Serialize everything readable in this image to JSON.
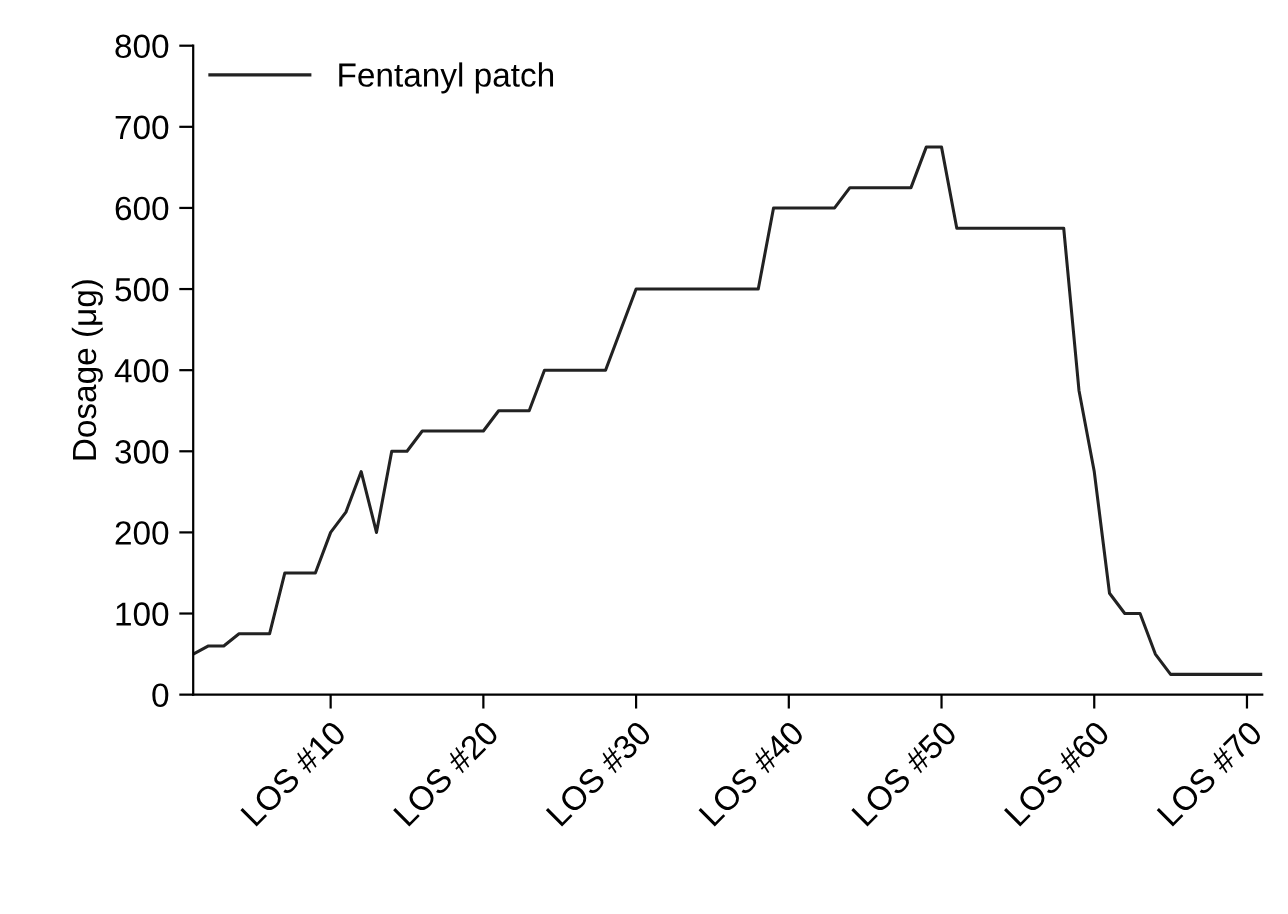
{
  "chart_data": {
    "type": "line",
    "ylabel": "Dosage (μg)",
    "xlim": [
      1,
      71
    ],
    "xticks": [
      {
        "value": 10,
        "label": "LOS #10"
      },
      {
        "value": 20,
        "label": "LOS #20"
      },
      {
        "value": 30,
        "label": "LOS #30"
      },
      {
        "value": 40,
        "label": "LOS #40"
      },
      {
        "value": 50,
        "label": "LOS #50"
      },
      {
        "value": 60,
        "label": "LOS #60"
      },
      {
        "value": 70,
        "label": "LOS #70"
      }
    ],
    "ylim": [
      0,
      800
    ],
    "yticks": [
      0,
      100,
      200,
      300,
      400,
      500,
      600,
      700,
      800
    ],
    "grid": false,
    "legend": "top left",
    "marker": "none",
    "line_style": "solid",
    "series": [
      {
        "name": "Fentanyl patch",
        "color": "#222222",
        "x": [
          1,
          2,
          3,
          4,
          6,
          7,
          9,
          10,
          11,
          12,
          13,
          14,
          15,
          16,
          20,
          21,
          23,
          24,
          28,
          30,
          38,
          39,
          43,
          44,
          48,
          49,
          50,
          51,
          58,
          59,
          60,
          61,
          62,
          63,
          64,
          65,
          71
        ],
        "values": [
          50,
          60,
          60,
          75,
          75,
          150,
          150,
          200,
          225,
          275,
          200,
          300,
          300,
          325,
          325,
          350,
          350,
          400,
          400,
          500,
          500,
          600,
          600,
          625,
          625,
          675,
          675,
          575,
          575,
          375,
          275,
          125,
          100,
          100,
          50,
          25,
          25
        ]
      }
    ]
  }
}
